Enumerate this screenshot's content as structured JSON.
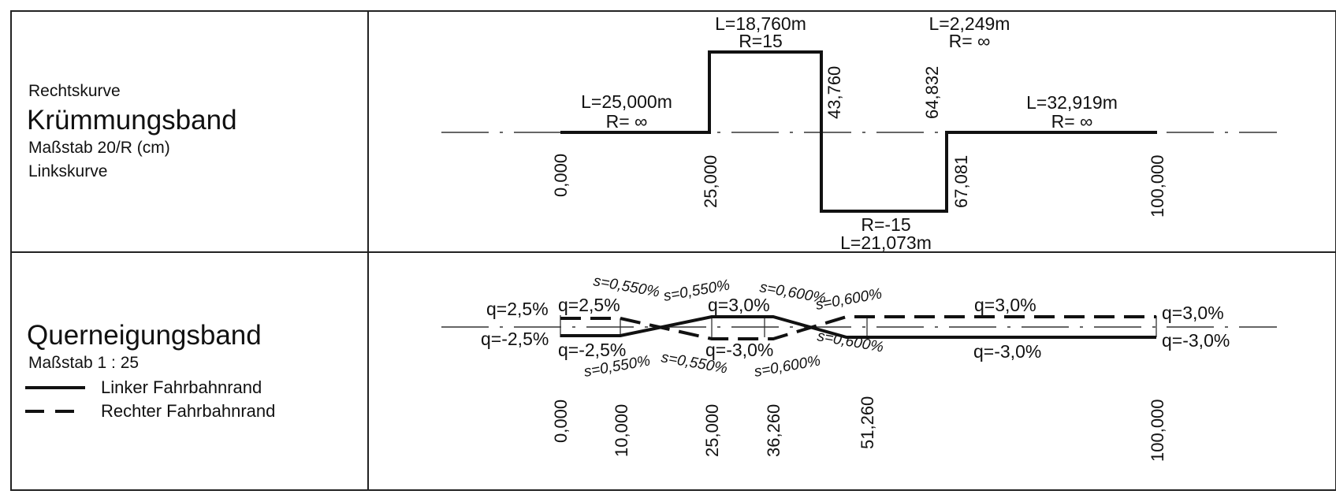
{
  "left_panel": {
    "top": {
      "label_right": "Rechtskurve",
      "title": "Krümmungsband",
      "scale": "Maßstab 20/R (cm)",
      "label_left": "Linkskurve"
    },
    "bottom": {
      "title": "Querneigungsband",
      "scale": "Maßstab 1 : 25",
      "legend": [
        {
          "style": "solid",
          "label": "Linker Fahrbahnrand"
        },
        {
          "style": "dashed",
          "label": "Rechter Fahrbahnrand"
        }
      ]
    }
  },
  "curvature": {
    "segments": [
      {
        "L": "L=25,000m",
        "R": "R= ∞"
      },
      {
        "L": "L=18,760m",
        "R": "R=15"
      },
      {
        "L": "L=21,073m",
        "R": "R=-15"
      },
      {
        "L": "L=2,249m",
        "R": "R= ∞"
      },
      {
        "L": "L=32,919m",
        "R": "R= ∞"
      }
    ],
    "stations": [
      "0,000",
      "25,000",
      "43,760",
      "64,832",
      "67,081",
      "100,000"
    ]
  },
  "superelevation": {
    "left_edge_q": [
      "q=2,5%",
      "q=2,5%",
      "q=3,0%",
      "q=3,0%",
      "q=3,0%"
    ],
    "right_edge_q": [
      "q=-2,5%",
      "q=-2,5%",
      "q=-3,0%",
      "q=-3,0%",
      "q=-3,0%"
    ],
    "slopes_top": [
      "s=0,550%",
      "s=0,550%",
      "s=0,600%",
      "s=0,600%"
    ],
    "slopes_bottom": [
      "s=0,550%",
      "s=0,550%",
      "s=0,600%",
      "s=0,600%"
    ],
    "stations": [
      "0,000",
      "10,000",
      "25,000",
      "36,260",
      "51,260",
      "100,000"
    ]
  }
}
